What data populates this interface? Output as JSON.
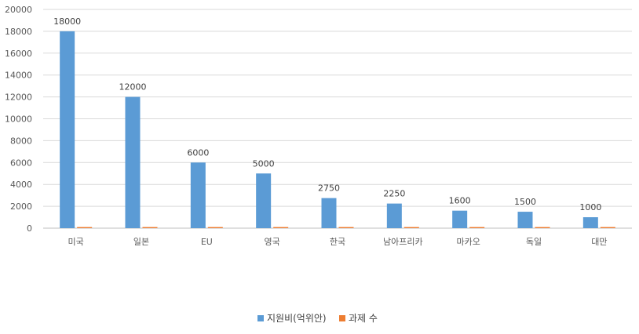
{
  "chart_data": {
    "type": "bar",
    "title": "",
    "xlabel": "",
    "ylabel": "",
    "categories": [
      "미국",
      "일본",
      "EU",
      "영국",
      "한국",
      "남아프리카",
      "마카오",
      "독일",
      "대만"
    ],
    "series": [
      {
        "name": "지원비(억위안)",
        "color": "#5B9BD5",
        "values": [
          18000,
          12000,
          6000,
          5000,
          2750,
          2250,
          1600,
          1500,
          1000
        ],
        "labels": [
          "18000",
          "12000",
          "6000",
          "5000",
          "2750",
          "2250",
          "1600",
          "1500",
          "1000"
        ]
      },
      {
        "name": "과제 수",
        "color": "#ED7D31",
        "values": [
          100,
          100,
          100,
          100,
          100,
          100,
          100,
          100,
          100
        ]
      }
    ],
    "ylim": [
      0,
      20000
    ],
    "yticks": [
      0,
      2000,
      4000,
      6000,
      8000,
      10000,
      12000,
      14000,
      16000,
      18000,
      20000
    ],
    "ytick_labels": [
      "0",
      "2000",
      "4000",
      "6000",
      "8000",
      "10000",
      "12000",
      "14000",
      "16000",
      "18000",
      "20000"
    ],
    "grid": true,
    "legend_position": "bottom"
  }
}
